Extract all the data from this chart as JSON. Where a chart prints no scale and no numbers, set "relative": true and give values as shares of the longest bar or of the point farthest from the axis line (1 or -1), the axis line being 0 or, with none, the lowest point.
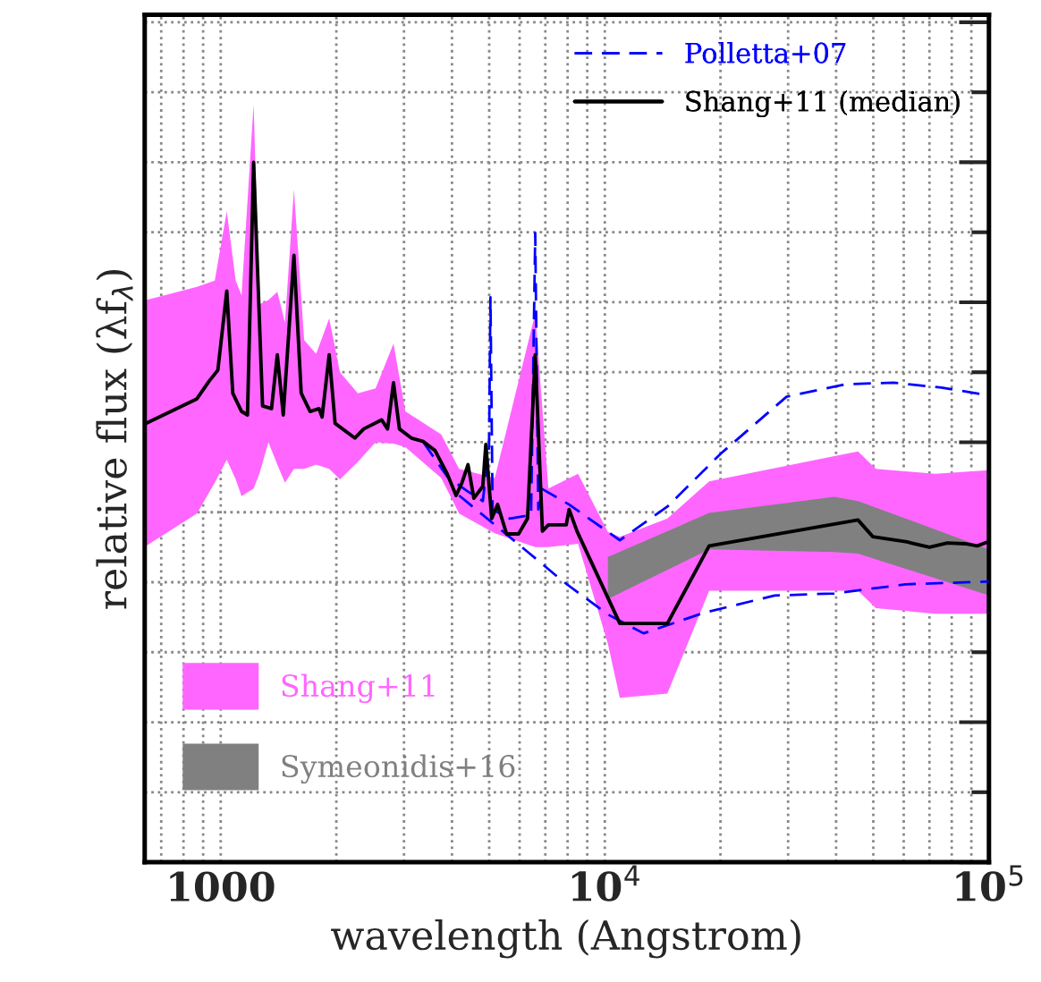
{
  "chart_data": {
    "type": "line",
    "relative": true,
    "log": "x",
    "xlabel": "wavelength (Angstrom)",
    "ylabel": "relative flux (λf$_{λ}$)",
    "xlim": [
      634,
      100000
    ],
    "xticks": [
      {
        "value": 1000,
        "label": "1000"
      },
      {
        "value": 10000,
        "label": "10$^{4}$"
      },
      {
        "value": 100000,
        "label": "10$^{5}$"
      }
    ],
    "tick_labels": "x",
    "grid": true,
    "legend": "top right",
    "series": [
      {
        "type": "line",
        "name": "Shang+11",
        "color": "#ff66ff",
        "x": [
          640,
          867,
          965,
          1037,
          1094,
          1133,
          1218,
          1261,
          1331,
          1404,
          1470,
          1551,
          1649,
          1772,
          1916,
          2044,
          2275,
          2531,
          2817,
          3026,
          3750,
          4175,
          5169,
          6589,
          7129,
          8517,
          10183,
          10940,
          14550,
          18690,
          45610,
          50770,
          72540,
          100000
        ],
        "values": [
          null,
          null,
          null,
          null,
          null,
          null,
          null,
          null,
          null,
          null,
          null,
          null,
          null,
          null,
          null,
          null,
          null,
          null,
          null,
          null,
          null,
          null,
          null,
          null,
          null,
          null,
          null,
          null,
          null,
          null,
          null,
          null,
          null,
          null
        ],
        "upper": [
          0.803,
          0.822,
          0.831,
          0.93,
          0.831,
          0.81,
          1.083,
          0.797,
          0.803,
          0.815,
          0.771,
          0.961,
          0.746,
          0.726,
          0.777,
          0.7,
          0.67,
          0.677,
          0.741,
          0.644,
          0.611,
          0.562,
          0.549,
          0.784,
          0.534,
          0.555,
          0.472,
          0.465,
          0.491,
          0.544,
          0.587,
          0.562,
          0.555,
          0.56
        ],
        "lower": [
          0.452,
          0.498,
          0.542,
          0.575,
          0.547,
          0.523,
          0.534,
          0.555,
          0.6,
          0.568,
          0.542,
          0.562,
          0.562,
          0.568,
          0.562,
          0.547,
          0.572,
          0.6,
          0.598,
          0.593,
          0.549,
          0.498,
          0.47,
          0.45,
          0.45,
          0.455,
          0.312,
          0.235,
          0.241,
          0.388,
          0.388,
          0.363,
          0.355,
          0.355
        ]
      },
      {
        "type": "line",
        "name": "Symeonidis+16",
        "color": "#808080",
        "x": [
          10183,
          18690,
          39560,
          45610,
          100000
        ],
        "values": [
          null,
          null,
          null,
          null,
          null
        ],
        "upper": [
          0.436,
          0.499,
          0.522,
          0.516,
          0.447
        ],
        "lower": [
          0.376,
          0.447,
          0.443,
          0.441,
          0.381
        ]
      },
      {
        "type": "line",
        "name": "Polletta+07",
        "color": "#0000ff",
        "line_style": "dashed",
        "x": [
          3370,
          3886,
          4417,
          4812,
          4995,
          5038,
          5103,
          5651,
          6427,
          6589,
          6710,
          6879,
          8072,
          10940,
          14550,
          20060,
          29720,
          42460,
          56510,
          75210,
          100000
        ],
        "values": [
          0.6,
          0.551,
          0.529,
          0.516,
          0.593,
          0.807,
          0.504,
          0.491,
          0.496,
          0.899,
          0.504,
          0.533,
          0.511,
          0.46,
          0.508,
          0.584,
          0.665,
          0.683,
          0.685,
          0.678,
          0.667
        ]
      },
      {
        "type": "line",
        "color": "#0000ff",
        "line_style": "dashed",
        "x": [
          4175,
          6406,
          7792,
          10183,
          12616,
          18020,
          27670,
          39560,
          60720,
          100000
        ],
        "values": [
          0.524,
          0.44,
          0.401,
          0.354,
          0.327,
          0.356,
          0.381,
          0.384,
          0.397,
          0.401
        ]
      },
      {
        "type": "line",
        "name": "Shang+11 (median)",
        "color": "#000000",
        "line_style": "solid",
        "x": [
          640,
          867,
          932,
          983,
          1037,
          1075,
          1133,
          1174,
          1218,
          1285,
          1356,
          1404,
          1455,
          1551,
          1620,
          1709,
          1803,
          1836,
          1916,
          1985,
          2234,
          2356,
          2623,
          2719,
          2817,
          2919,
          3135,
          3370,
          3615,
          3886,
          4100,
          4246,
          4403,
          4561,
          4812,
          4900,
          5076,
          5258,
          5549,
          5963,
          6291,
          6589,
          6879,
          7129,
          7935,
          8072,
          8462,
          10940,
          14550,
          18690,
          45610,
          49860,
          60720,
          69990,
          77930,
          86730,
          93190,
          100000
        ],
        "values": [
          0.627,
          0.662,
          0.687,
          0.703,
          0.816,
          0.67,
          0.644,
          0.639,
          1,
          0.652,
          0.648,
          0.725,
          0.639,
          0.867,
          0.67,
          0.644,
          0.648,
          0.636,
          0.725,
          0.627,
          0.606,
          0.619,
          0.632,
          0.619,
          0.685,
          0.619,
          0.606,
          0.601,
          0.588,
          0.555,
          0.524,
          0.542,
          0.568,
          0.52,
          0.537,
          0.597,
          0.491,
          0.511,
          0.469,
          0.469,
          0.491,
          0.725,
          0.473,
          0.482,
          0.482,
          0.504,
          0.473,
          0.341,
          0.341,
          0.452,
          0.489,
          0.465,
          0.458,
          0.45,
          0.456,
          0.455,
          0.452,
          0.458
        ]
      }
    ]
  }
}
